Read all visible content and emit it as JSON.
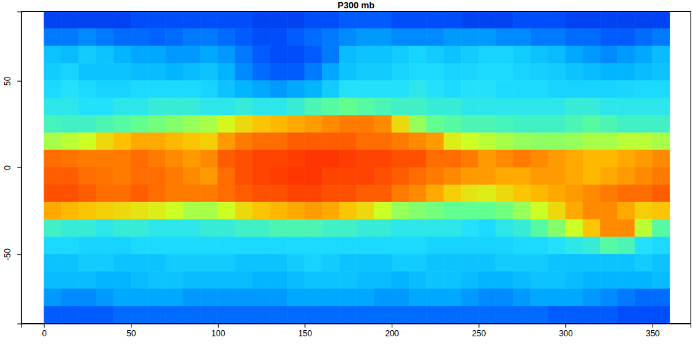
{
  "chart_data": {
    "type": "heatmap",
    "title": "P300 mb",
    "xlim": [
      -13,
      372
    ],
    "ylim": [
      -90,
      90
    ],
    "xticks": [
      0,
      50,
      100,
      150,
      200,
      250,
      300,
      350
    ],
    "yticks": [
      -50,
      0,
      50
    ],
    "zlim": [
      0,
      100
    ],
    "x": [
      5,
      15,
      25,
      35,
      45,
      55,
      65,
      75,
      85,
      95,
      105,
      115,
      125,
      135,
      145,
      155,
      165,
      175,
      185,
      195,
      205,
      215,
      225,
      235,
      245,
      255,
      265,
      275,
      285,
      295,
      305,
      315,
      325,
      335,
      345,
      355
    ],
    "y": [
      85,
      75,
      65,
      55,
      45,
      35,
      25,
      15,
      5,
      -5,
      -15,
      -25,
      -35,
      -45,
      -55,
      -65,
      -75,
      -85
    ],
    "z": [
      [
        10,
        10,
        10,
        10,
        10,
        12,
        12,
        12,
        12,
        12,
        12,
        12,
        10,
        10,
        10,
        12,
        12,
        14,
        14,
        14,
        12,
        12,
        12,
        12,
        10,
        10,
        10,
        12,
        12,
        12,
        10,
        10,
        10,
        10,
        10,
        10
      ],
      [
        18,
        18,
        20,
        18,
        16,
        16,
        15,
        16,
        18,
        18,
        16,
        14,
        12,
        12,
        14,
        16,
        18,
        20,
        22,
        22,
        20,
        20,
        20,
        22,
        22,
        22,
        20,
        20,
        18,
        18,
        16,
        16,
        14,
        14,
        16,
        18
      ],
      [
        30,
        28,
        32,
        30,
        26,
        24,
        24,
        22,
        22,
        24,
        22,
        18,
        14,
        12,
        12,
        14,
        18,
        28,
        30,
        30,
        32,
        34,
        32,
        30,
        32,
        34,
        34,
        32,
        30,
        28,
        24,
        22,
        20,
        22,
        24,
        28
      ],
      [
        32,
        34,
        30,
        30,
        30,
        28,
        28,
        26,
        28,
        30,
        26,
        20,
        16,
        14,
        14,
        18,
        24,
        30,
        32,
        32,
        34,
        36,
        36,
        34,
        35,
        36,
        36,
        34,
        33,
        32,
        30,
        28,
        26,
        26,
        28,
        30
      ],
      [
        36,
        38,
        36,
        34,
        34,
        36,
        36,
        36,
        36,
        34,
        30,
        26,
        24,
        22,
        24,
        26,
        32,
        38,
        38,
        38,
        38,
        40,
        38,
        36,
        38,
        38,
        36,
        36,
        36,
        34,
        34,
        34,
        34,
        35,
        36,
        36
      ],
      [
        40,
        40,
        38,
        38,
        40,
        40,
        42,
        42,
        42,
        40,
        40,
        42,
        40,
        40,
        42,
        46,
        48,
        50,
        48,
        46,
        44,
        44,
        42,
        42,
        40,
        40,
        40,
        40,
        40,
        40,
        42,
        42,
        40,
        40,
        40,
        40
      ],
      [
        45,
        44,
        44,
        46,
        48,
        50,
        52,
        54,
        56,
        58,
        64,
        70,
        74,
        76,
        78,
        80,
        82,
        84,
        84,
        82,
        70,
        56,
        50,
        48,
        46,
        46,
        45,
        44,
        44,
        44,
        46,
        48,
        46,
        44,
        44,
        44
      ],
      [
        58,
        60,
        62,
        70,
        75,
        78,
        78,
        76,
        74,
        72,
        80,
        84,
        86,
        86,
        88,
        88,
        88,
        88,
        86,
        86,
        84,
        82,
        80,
        66,
        62,
        60,
        58,
        56,
        55,
        55,
        56,
        58,
        58,
        60,
        60,
        58
      ],
      [
        86,
        85,
        84,
        84,
        84,
        86,
        84,
        82,
        80,
        82,
        88,
        90,
        92,
        92,
        93,
        94,
        94,
        93,
        92,
        92,
        90,
        90,
        86,
        86,
        84,
        80,
        82,
        84,
        82,
        80,
        78,
        76,
        76,
        78,
        80,
        82
      ],
      [
        88,
        88,
        86,
        85,
        84,
        86,
        86,
        84,
        82,
        80,
        86,
        90,
        92,
        93,
        94,
        94,
        92,
        92,
        92,
        90,
        88,
        86,
        84,
        82,
        80,
        80,
        78,
        78,
        80,
        80,
        78,
        76,
        78,
        80,
        82,
        84
      ],
      [
        90,
        90,
        88,
        86,
        86,
        88,
        86,
        84,
        84,
        84,
        86,
        88,
        90,
        90,
        92,
        92,
        90,
        90,
        88,
        88,
        84,
        82,
        78,
        72,
        68,
        66,
        70,
        74,
        76,
        78,
        80,
        82,
        84,
        86,
        86,
        88
      ],
      [
        78,
        76,
        74,
        72,
        70,
        68,
        66,
        62,
        58,
        58,
        62,
        70,
        74,
        76,
        78,
        80,
        78,
        74,
        70,
        62,
        56,
        54,
        52,
        50,
        50,
        50,
        52,
        56,
        62,
        70,
        78,
        82,
        82,
        78,
        72,
        74
      ],
      [
        44,
        42,
        42,
        40,
        42,
        42,
        40,
        40,
        40,
        42,
        42,
        44,
        44,
        46,
        46,
        46,
        44,
        44,
        42,
        42,
        40,
        40,
        40,
        40,
        38,
        36,
        40,
        42,
        48,
        54,
        62,
        74,
        82,
        82,
        60,
        48
      ],
      [
        36,
        36,
        34,
        34,
        34,
        36,
        36,
        36,
        36,
        36,
        36,
        36,
        36,
        36,
        36,
        36,
        36,
        36,
        36,
        36,
        36,
        36,
        34,
        34,
        34,
        34,
        34,
        36,
        36,
        38,
        40,
        42,
        48,
        46,
        38,
        36
      ],
      [
        30,
        30,
        32,
        32,
        30,
        30,
        30,
        32,
        32,
        32,
        32,
        30,
        30,
        30,
        32,
        34,
        32,
        30,
        30,
        30,
        32,
        32,
        30,
        30,
        30,
        30,
        32,
        32,
        32,
        30,
        30,
        30,
        30,
        30,
        32,
        30
      ],
      [
        28,
        28,
        28,
        26,
        26,
        28,
        30,
        30,
        28,
        28,
        28,
        28,
        26,
        26,
        28,
        30,
        30,
        30,
        28,
        28,
        26,
        28,
        30,
        30,
        28,
        26,
        26,
        28,
        30,
        30,
        28,
        26,
        26,
        26,
        26,
        28
      ],
      [
        22,
        20,
        20,
        22,
        24,
        24,
        24,
        24,
        22,
        22,
        22,
        22,
        22,
        22,
        24,
        24,
        24,
        24,
        24,
        22,
        22,
        24,
        24,
        24,
        22,
        20,
        20,
        22,
        24,
        24,
        24,
        22,
        20,
        18,
        16,
        16
      ],
      [
        14,
        14,
        14,
        14,
        16,
        16,
        16,
        16,
        16,
        16,
        16,
        16,
        16,
        16,
        16,
        16,
        16,
        16,
        16,
        16,
        16,
        16,
        16,
        16,
        16,
        16,
        16,
        16,
        16,
        14,
        14,
        14,
        14,
        12,
        12,
        12
      ]
    ]
  }
}
